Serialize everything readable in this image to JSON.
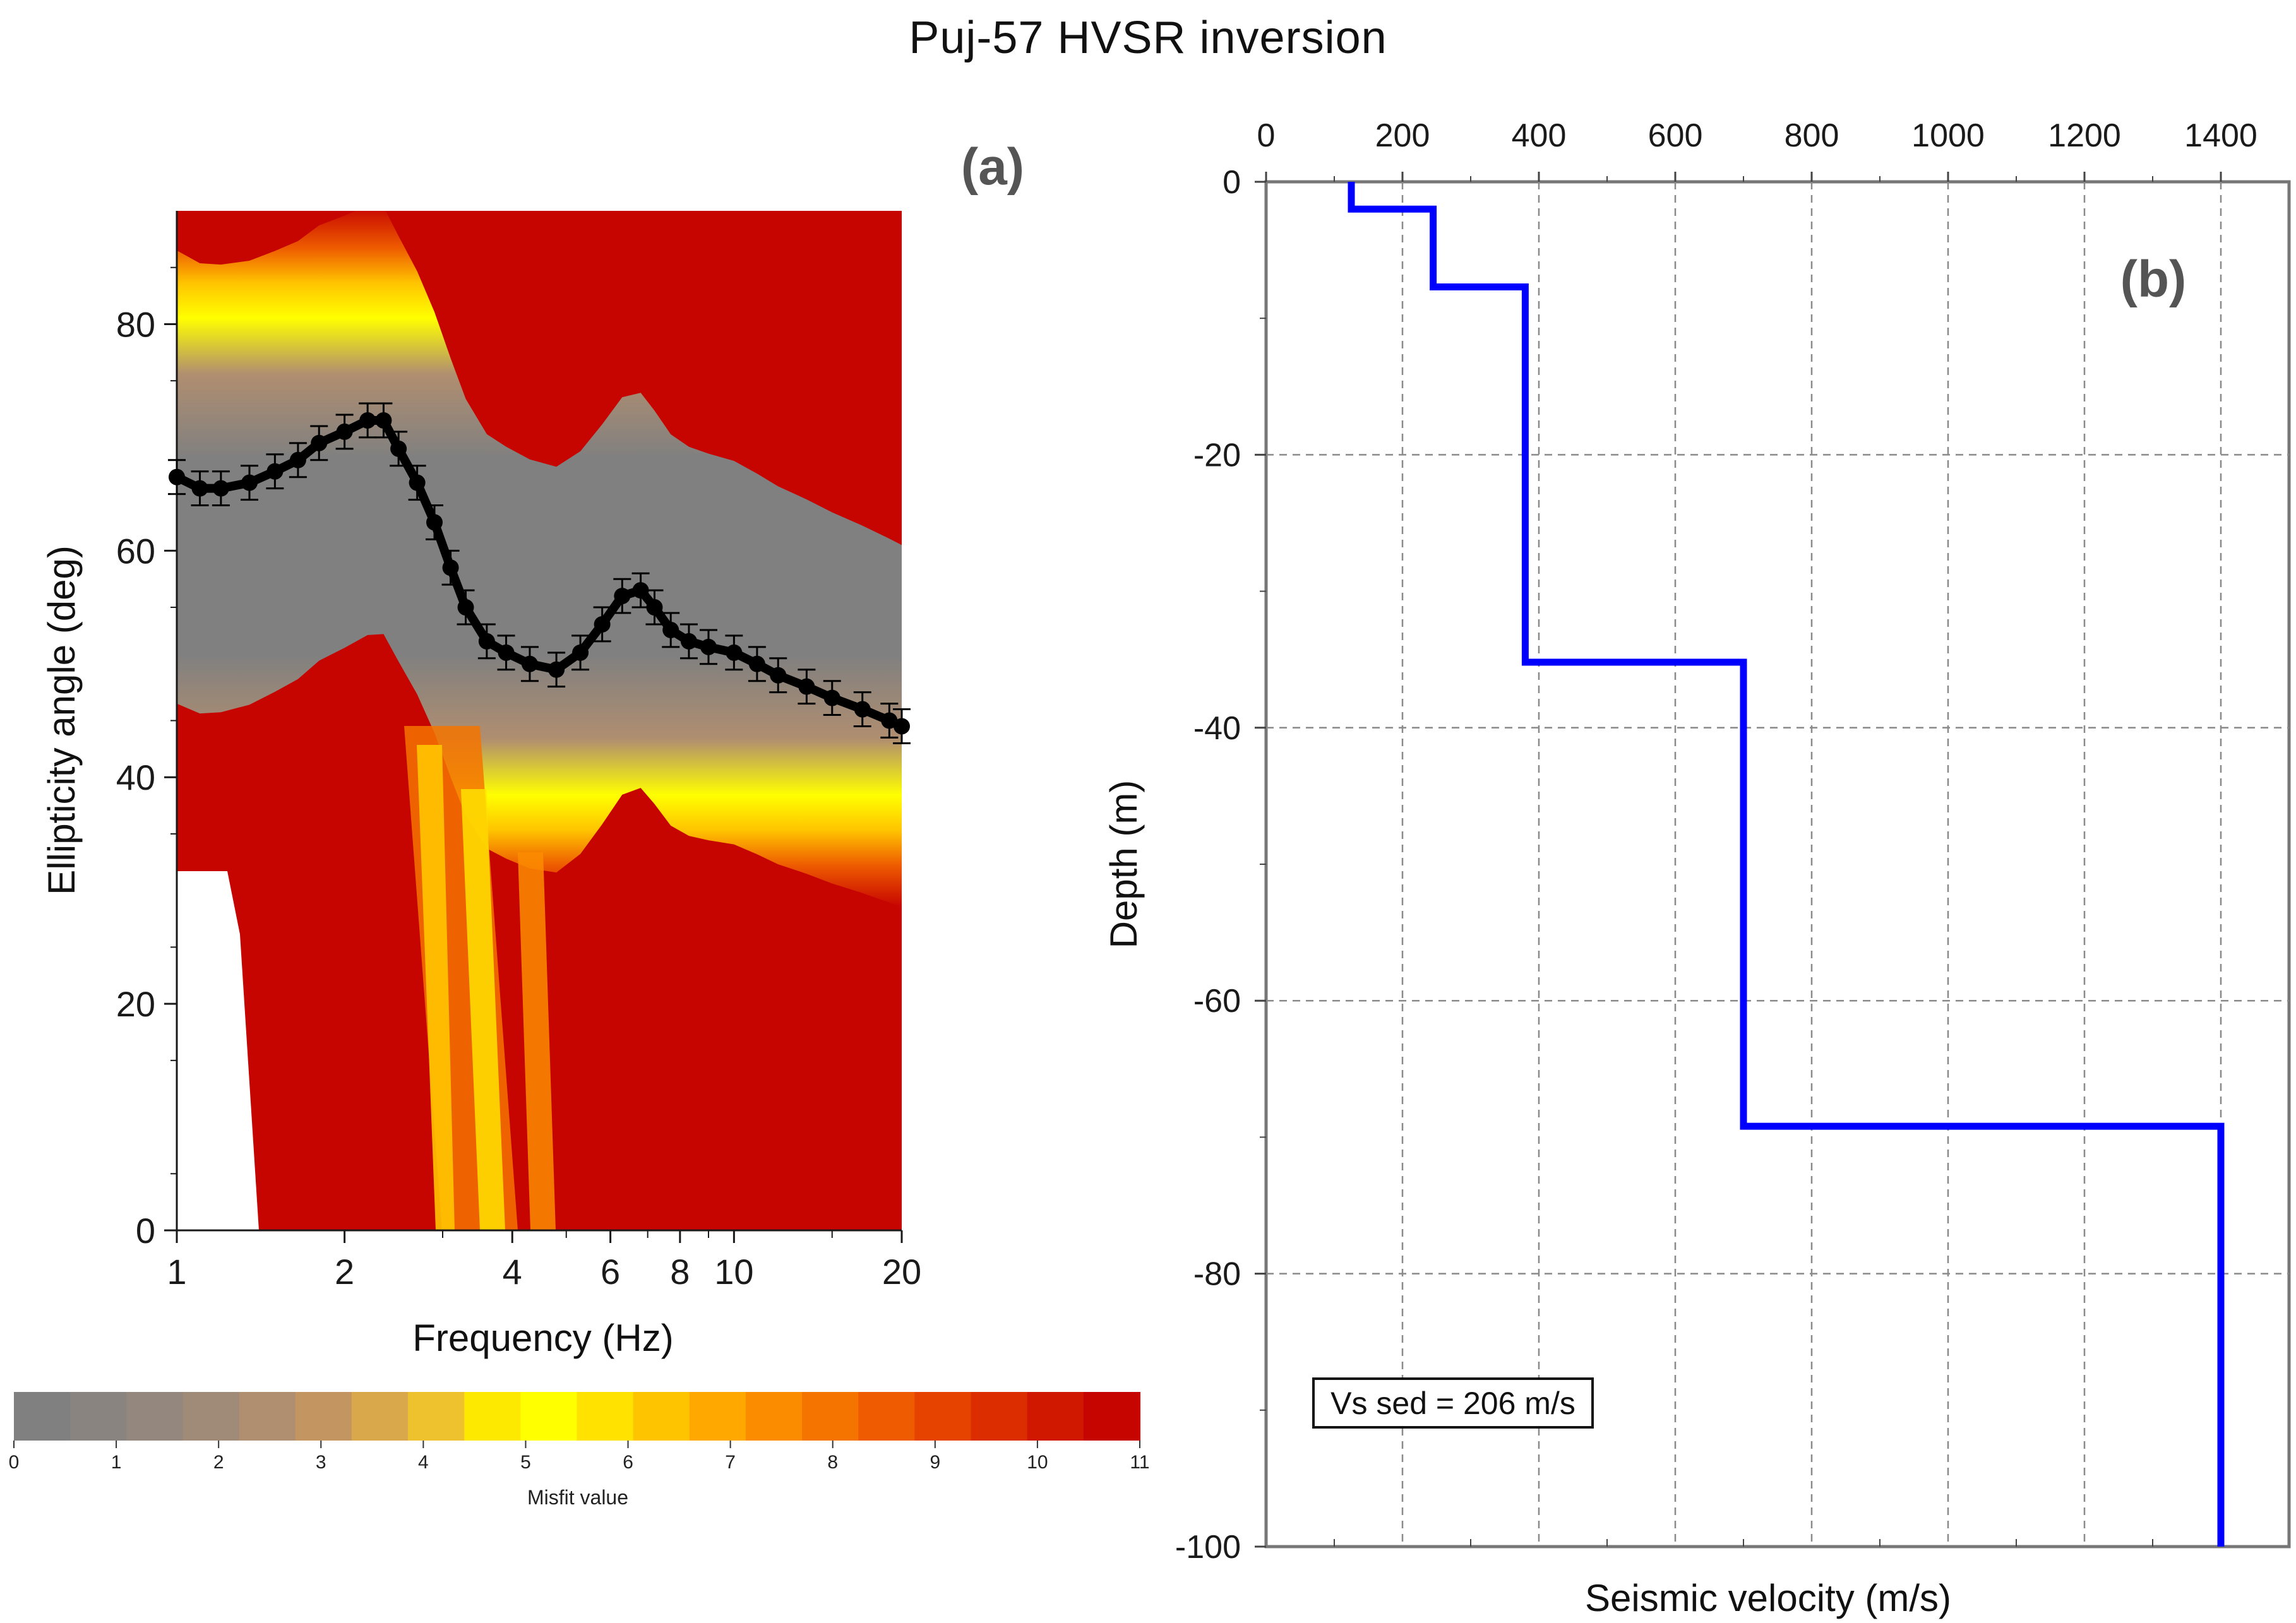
{
  "title": "Puj-57 HVSR inversion",
  "chart_data": [
    {
      "type": "line",
      "panel_label": "(a)",
      "title": "",
      "xlabel": "Frequency (Hz)",
      "ylabel": "Ellipticity angle (deg)",
      "xscale": "log",
      "xlim": [
        1,
        20
      ],
      "ylim": [
        0,
        90
      ],
      "xticks": [
        1,
        2,
        4,
        6,
        8,
        10,
        20
      ],
      "xtick_labels": [
        "1",
        "2",
        "4",
        "6",
        "8",
        "10",
        "20"
      ],
      "yticks": [
        0,
        20,
        40,
        60,
        80
      ],
      "ytick_labels": [
        "0",
        "20",
        "40",
        "60",
        "80"
      ],
      "background_note": "Ensemble of inverted ellipticity curves colored by misfit value",
      "series": [
        {
          "name": "Observed ellipticity (mean with error bars)",
          "color": "#000000",
          "x": [
            1.0,
            1.1,
            1.2,
            1.35,
            1.5,
            1.65,
            1.8,
            2.0,
            2.2,
            2.35,
            2.5,
            2.7,
            2.9,
            3.1,
            3.3,
            3.6,
            3.9,
            4.3,
            4.8,
            5.3,
            5.8,
            6.3,
            6.8,
            7.2,
            7.7,
            8.3,
            9.0,
            10.0,
            11.0,
            12.0,
            13.5,
            15.0,
            17.0,
            19.0,
            20.0
          ],
          "y": [
            66.5,
            65.5,
            65.5,
            66.0,
            67.0,
            68.0,
            69.5,
            70.5,
            71.5,
            71.5,
            69.0,
            66.0,
            62.5,
            58.5,
            55.0,
            52.0,
            51.0,
            50.0,
            49.5,
            51.0,
            53.5,
            56.0,
            56.5,
            55.0,
            53.0,
            52.0,
            51.5,
            51.0,
            50.0,
            49.0,
            48.0,
            47.0,
            46.0,
            45.0,
            44.5
          ]
        }
      ],
      "colorbar": {
        "title": "Misfit value",
        "min": 0,
        "max": 11,
        "ticks": [
          "0",
          "1",
          "2",
          "3",
          "4",
          "5",
          "6",
          "7",
          "8",
          "9",
          "10",
          "11"
        ],
        "colors": [
          "#808080",
          "#8a8480",
          "#94877d",
          "#a08a78",
          "#b08e70",
          "#c39560",
          "#d9a84a",
          "#eec22e",
          "#fde800",
          "#ffff00",
          "#ffe200",
          "#ffc400",
          "#ffa800",
          "#fb8c00",
          "#f57400",
          "#ee5b00",
          "#e64300",
          "#dc2d00",
          "#d01800",
          "#c60400"
        ]
      }
    },
    {
      "type": "line",
      "panel_label": "(b)",
      "title": "",
      "xlabel": "Seismic velocity (m/s)",
      "ylabel": "Depth (m)",
      "xlim": [
        0,
        1500
      ],
      "ylim": [
        -100,
        0
      ],
      "xticks": [
        0,
        200,
        400,
        600,
        800,
        1000,
        1200,
        1400
      ],
      "xtick_labels": [
        "0",
        "200",
        "400",
        "600",
        "800",
        "1000",
        "1200",
        "1400"
      ],
      "yticks": [
        0,
        -20,
        -40,
        -60,
        -80,
        -100
      ],
      "ytick_labels": [
        "0",
        "-20",
        "-40",
        "-60",
        "-80",
        "-100"
      ],
      "grid": true,
      "annotation": "Vs sed = 206 m/s",
      "series": [
        {
          "name": "Vs profile",
          "color": "#0000ff",
          "x": [
            125,
            125,
            245,
            245,
            380,
            380,
            700,
            700,
            1400,
            1400
          ],
          "y": [
            0,
            -2,
            -2,
            -7.7,
            -7.7,
            -35.2,
            -35.2,
            -69.2,
            -69.2,
            -100
          ]
        }
      ]
    }
  ]
}
